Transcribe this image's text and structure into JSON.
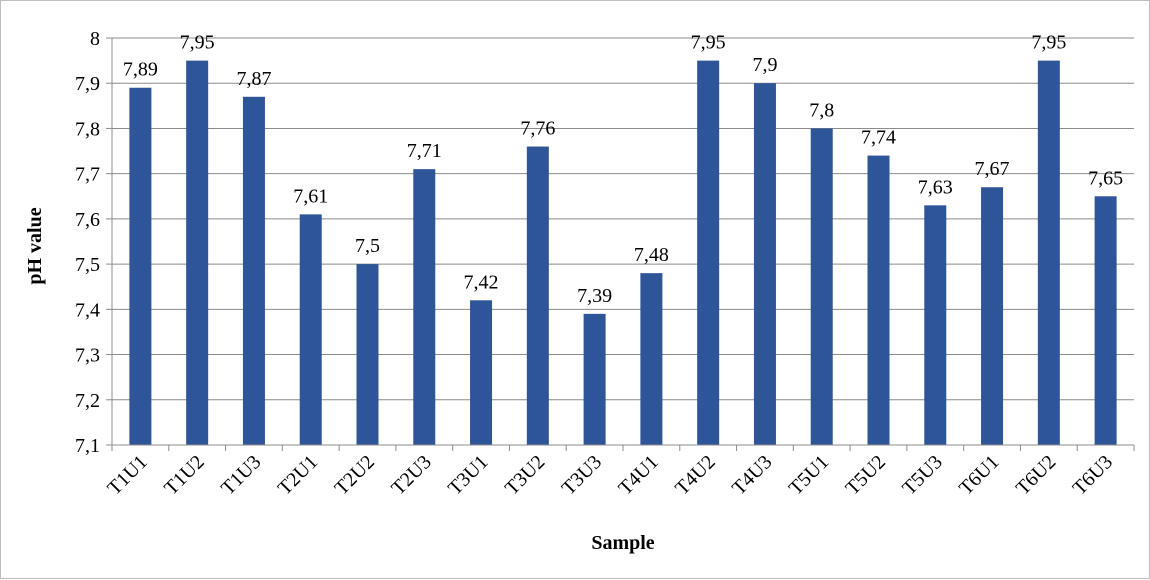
{
  "chart_data": {
    "type": "bar",
    "title": "",
    "xlabel": "Sample",
    "ylabel": "pH value",
    "ylim": [
      7.1,
      8.0
    ],
    "y_ticks": [
      "7,1",
      "7,2",
      "7,3",
      "7,4",
      "7,5",
      "7,6",
      "7,7",
      "7,8",
      "7,9",
      "8"
    ],
    "grid": true,
    "legend": "none",
    "decimal_separator": ",",
    "bar_color": "#2E5597",
    "categories": [
      "T1U1",
      "T1U2",
      "T1U3",
      "T2U1",
      "T2U2",
      "T2U3",
      "T3U1",
      "T3U2",
      "T3U3",
      "T4U1",
      "T4U2",
      "T4U3",
      "T5U1",
      "T5U2",
      "T5U3",
      "T6U1",
      "T6U2",
      "T6U3"
    ],
    "values": [
      7.89,
      7.95,
      7.87,
      7.61,
      7.5,
      7.71,
      7.42,
      7.76,
      7.39,
      7.48,
      7.95,
      7.9,
      7.8,
      7.74,
      7.63,
      7.67,
      7.95,
      7.65
    ],
    "data_labels": [
      "7,89",
      "7,95",
      "7,87",
      "7,61",
      "7,5",
      "7,71",
      "7,42",
      "7,76",
      "7,39",
      "7,48",
      "7,95",
      "7,9",
      "7,8",
      "7,74",
      "7,63",
      "7,67",
      "7,95",
      "7,65"
    ]
  }
}
